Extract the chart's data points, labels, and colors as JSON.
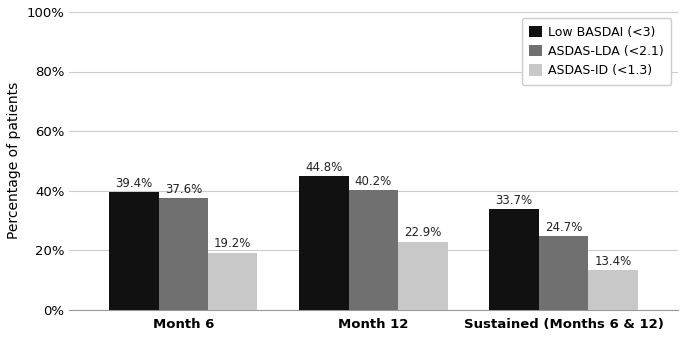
{
  "groups": [
    "Month 6",
    "Month 12",
    "Sustained (Months 6 & 12)"
  ],
  "series": [
    {
      "label": "Low BASDAI (<3)",
      "color": "#111111",
      "values": [
        39.4,
        44.8,
        33.7
      ]
    },
    {
      "label": "ASDAS-LDA (<2.1)",
      "color": "#707070",
      "values": [
        37.6,
        40.2,
        24.7
      ]
    },
    {
      "label": "ASDAS-ID (<1.3)",
      "color": "#c8c8c8",
      "values": [
        19.2,
        22.9,
        13.4
      ]
    }
  ],
  "ylabel": "Percentage of patients",
  "ylim": [
    0,
    100
  ],
  "yticks": [
    0,
    20,
    40,
    60,
    80,
    100
  ],
  "ytick_labels": [
    "0%",
    "20%",
    "40%",
    "60%",
    "80%",
    "100%"
  ],
  "bar_width": 0.26,
  "label_fontsize": 8.5,
  "tick_fontsize": 9.5,
  "ylabel_fontsize": 10,
  "legend_fontsize": 9,
  "background_color": "#ffffff",
  "grid_color": "#cccccc",
  "grid_linewidth": 0.8
}
